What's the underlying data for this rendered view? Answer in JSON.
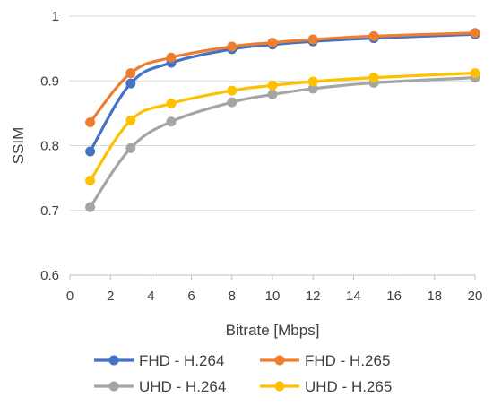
{
  "chart_data": {
    "type": "line",
    "title": "",
    "xlabel": "Bitrate [Mbps]",
    "ylabel": "SSIM",
    "xlim": [
      0,
      20
    ],
    "ylim": [
      0.6,
      1.0
    ],
    "x_ticks": [
      0,
      2,
      4,
      6,
      8,
      10,
      12,
      14,
      16,
      18,
      20
    ],
    "y_ticks": [
      0.6,
      0.7,
      0.8,
      0.9,
      1.0
    ],
    "x_tick_labels": [
      "0",
      "2",
      "4",
      "6",
      "8",
      "10",
      "12",
      "14",
      "16",
      "18",
      "20"
    ],
    "y_tick_labels": [
      "0.6",
      "0.7",
      "0.8",
      "0.9",
      "1"
    ],
    "grid": "horizontal",
    "legend_position": "bottom",
    "x": [
      1,
      3,
      5,
      8,
      10,
      12,
      15,
      20
    ],
    "series": [
      {
        "name": "FHD - H.264",
        "color": "#4472C4",
        "values": [
          0.791,
          0.896,
          0.928,
          0.949,
          0.956,
          0.961,
          0.966,
          0.972
        ]
      },
      {
        "name": "FHD - H.265",
        "color": "#ED7D31",
        "values": [
          0.836,
          0.912,
          0.936,
          0.953,
          0.959,
          0.964,
          0.969,
          0.974
        ]
      },
      {
        "name": "UHD - H.264",
        "color": "#A5A5A5",
        "values": [
          0.705,
          0.796,
          0.837,
          0.867,
          0.879,
          0.888,
          0.897,
          0.905
        ]
      },
      {
        "name": "UHD - H.265",
        "color": "#FFC000",
        "values": [
          0.746,
          0.839,
          0.865,
          0.885,
          0.893,
          0.899,
          0.905,
          0.912
        ]
      }
    ]
  }
}
